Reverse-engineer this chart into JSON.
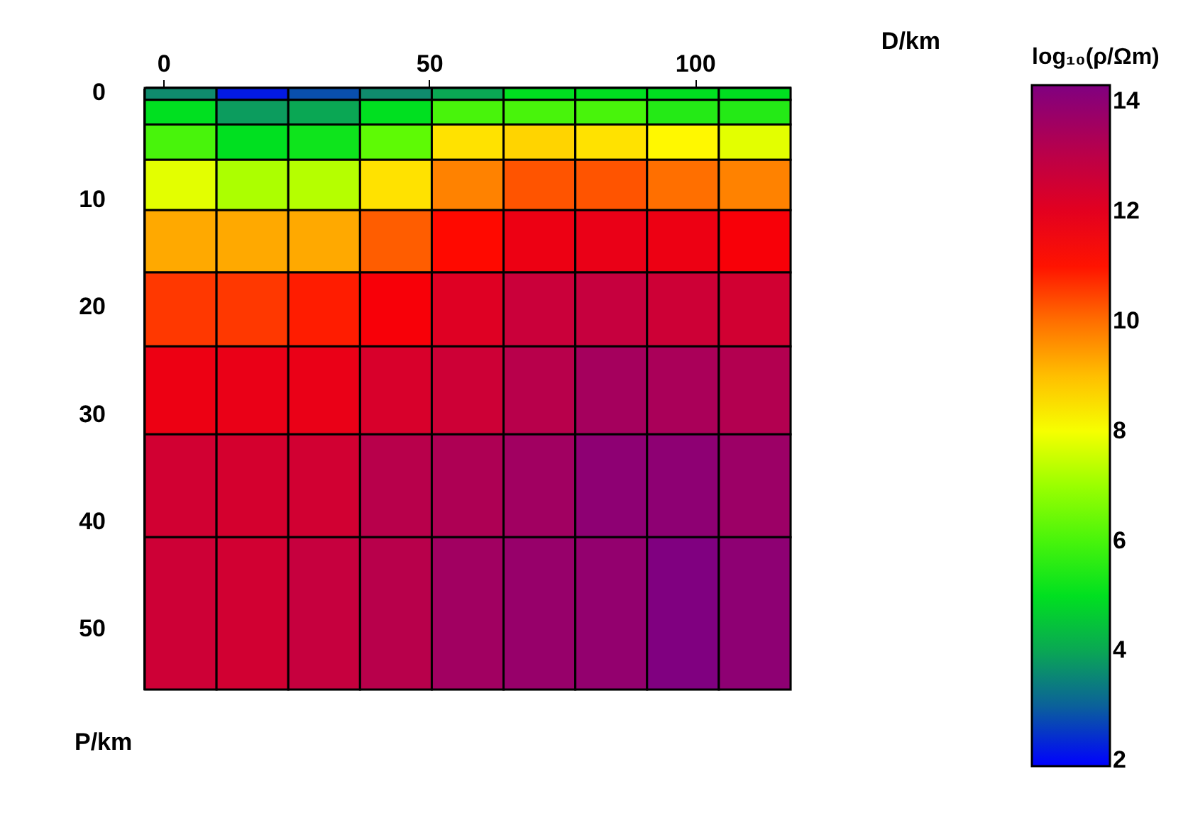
{
  "chart_data": {
    "type": "heatmap",
    "xlabel": "D/km",
    "ylabel": "P/km",
    "clabel": "log₁₀(ρ/Ωm)",
    "x": [
      3.25,
      16.75,
      30.25,
      43.75,
      57.25,
      70.75,
      84.25,
      97.75,
      111.25
    ],
    "y": [
      0.15,
      1.85,
      4.65,
      8.65,
      13.9,
      20.25,
      27.8,
      36.7,
      48.6
    ],
    "xlim": [
      -3.5,
      118
    ],
    "xticks": [
      0,
      50,
      100
    ],
    "ylim": [
      55.7,
      -0.4
    ],
    "yticks": [
      0,
      10,
      20,
      30,
      40,
      50
    ],
    "clim": [
      1.9,
      14.3
    ],
    "cticks": [
      2,
      4,
      6,
      8,
      10,
      12,
      14
    ],
    "cells": [
      [
        3.5,
        2.2,
        2.8,
        3.5,
        4,
        5,
        5,
        5,
        5
      ],
      [
        5,
        3.8,
        4,
        5,
        6,
        6,
        6,
        5.5,
        5.5
      ],
      [
        6,
        5,
        5.2,
        6.3,
        8.5,
        8.7,
        8.5,
        8.2,
        7.8
      ],
      [
        7.8,
        7.2,
        7.3,
        8.5,
        9.8,
        10.3,
        10.3,
        10,
        9.8
      ],
      [
        9.3,
        9.3,
        9.3,
        10.2,
        11.1,
        11.7,
        11.8,
        11.7,
        11.4
      ],
      [
        10.6,
        10.6,
        10.9,
        11.4,
        12.1,
        12.7,
        12.8,
        12.6,
        12.5
      ],
      [
        11.7,
        11.8,
        11.8,
        12.3,
        12.6,
        13.1,
        13.5,
        13.4,
        13.2
      ],
      [
        12.5,
        12.4,
        12.5,
        13.1,
        13.3,
        13.6,
        14.0,
        14.0,
        13.7
      ],
      [
        12.6,
        12.5,
        12.8,
        13.1,
        13.6,
        13.8,
        13.9,
        14.3,
        14.0
      ]
    ]
  }
}
